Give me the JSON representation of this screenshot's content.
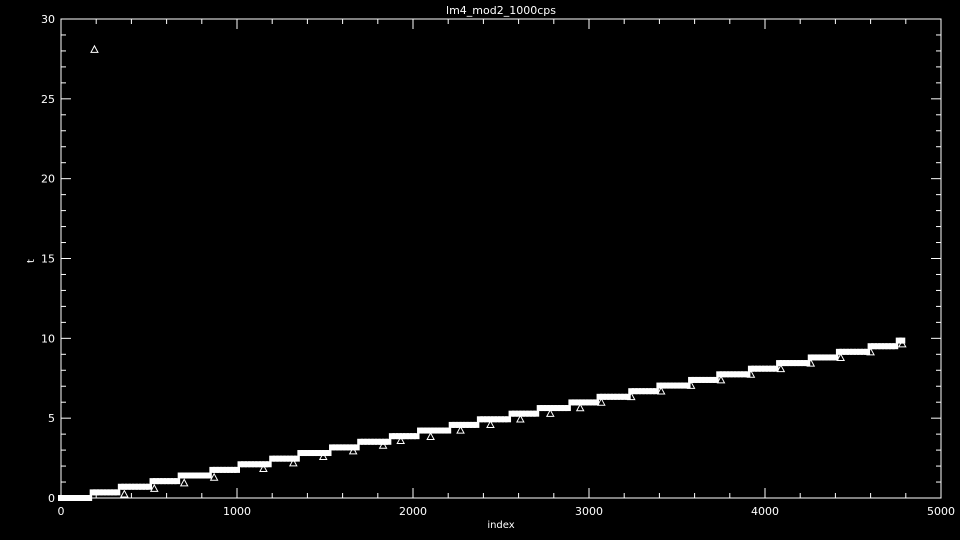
{
  "chart_data": {
    "type": "scatter",
    "title": "lm4_mod2_1000cps",
    "xlabel": "index",
    "ylabel": "t",
    "xlim": [
      0,
      5000
    ],
    "ylim": [
      0,
      30
    ],
    "grid": false,
    "x_ticks": [
      0,
      1000,
      2000,
      3000,
      4000,
      5000
    ],
    "y_ticks": [
      0,
      5,
      10,
      15,
      20,
      25,
      30
    ],
    "x_tick_labels": [
      "0",
      "1000",
      "2000",
      "3000",
      "4000",
      "5000"
    ],
    "y_tick_labels": [
      "0",
      "5",
      "10",
      "15",
      "20",
      "25",
      "30"
    ],
    "x_minor_step": 200,
    "y_minor_step": 1,
    "colors": {
      "background": "#000000",
      "foreground": "#ffffff"
    },
    "series": [
      {
        "marker": "square",
        "description_of_shape": "dense near-linear staircase",
        "x_start": 0,
        "x_end": 4780,
        "y_start": 0,
        "y_end": 9.9,
        "step_every_index": 170,
        "count_points": 240
      },
      {
        "marker": "triangle",
        "points": [
          [
            190,
            28.1
          ],
          [
            360,
            0.25
          ],
          [
            530,
            0.6
          ],
          [
            700,
            0.95
          ],
          [
            870,
            1.3
          ],
          [
            1150,
            1.85
          ],
          [
            1320,
            2.2
          ],
          [
            1490,
            2.6
          ],
          [
            1660,
            2.95
          ],
          [
            1830,
            3.3
          ],
          [
            1930,
            3.6
          ],
          [
            2100,
            3.85
          ],
          [
            2270,
            4.25
          ],
          [
            2440,
            4.6
          ],
          [
            2610,
            4.95
          ],
          [
            2780,
            5.3
          ],
          [
            2950,
            5.65
          ],
          [
            3070,
            6.0
          ],
          [
            3240,
            6.35
          ],
          [
            3410,
            6.7
          ],
          [
            3580,
            7.05
          ],
          [
            3750,
            7.4
          ],
          [
            3920,
            7.75
          ],
          [
            4090,
            8.1
          ],
          [
            4260,
            8.45
          ],
          [
            4430,
            8.8
          ],
          [
            4600,
            9.15
          ],
          [
            4780,
            9.65
          ]
        ]
      }
    ]
  }
}
